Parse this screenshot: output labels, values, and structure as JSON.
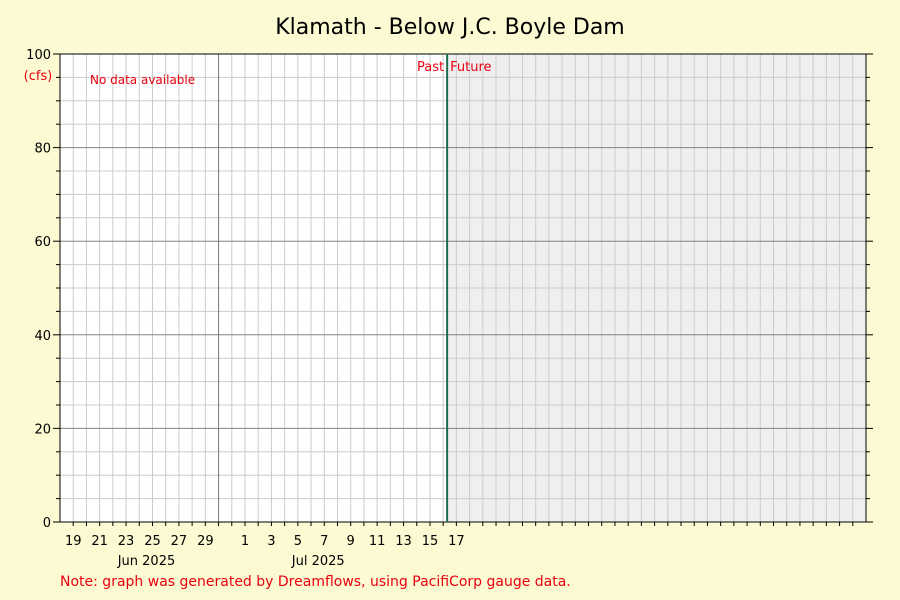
{
  "chart_data": {
    "type": "line",
    "title": "Klamath - Below J.C. Boyle Dam",
    "ylabel": "(cfs)",
    "ylim": [
      0,
      100
    ],
    "y_ticks": [
      0,
      20,
      40,
      60,
      80,
      100
    ],
    "y_minor_step": 5,
    "x_start": "2025-05-18",
    "x_end": "2025-07-18",
    "x_tick_labels": [
      {
        "date": "2025-05-19",
        "label": "19"
      },
      {
        "date": "2025-05-21",
        "label": "21"
      },
      {
        "date": "2025-05-23",
        "label": "23"
      },
      {
        "date": "2025-05-25",
        "label": "25"
      },
      {
        "date": "2025-05-27",
        "label": "27"
      },
      {
        "date": "2025-05-29",
        "label": "29"
      },
      {
        "date": "2025-06-01",
        "label": "1"
      },
      {
        "date": "2025-06-03",
        "label": "3"
      },
      {
        "date": "2025-06-05",
        "label": "5"
      },
      {
        "date": "2025-06-07",
        "label": "7"
      },
      {
        "date": "2025-06-09",
        "label": "9"
      },
      {
        "date": "2025-06-11",
        "label": "11"
      },
      {
        "date": "2025-06-13",
        "label": "13"
      },
      {
        "date": "2025-06-15",
        "label": "15"
      },
      {
        "date": "2025-06-17",
        "label": "17"
      }
    ],
    "month_labels": [
      {
        "date": "2025-05-25",
        "label": "Jun 2025"
      },
      {
        "date": "2025-06-07",
        "label": "Jul 2025"
      }
    ],
    "month_boundaries": [
      "2025-05-30"
    ],
    "now_date": "2025-06-16.3",
    "past_label": "Past",
    "future_label": "Future",
    "no_data_text": "No data available",
    "series": [],
    "grid": true,
    "colors": {
      "background": "#fcfad2",
      "plot_bg": "#ffffff",
      "future_bg": "#efefef",
      "grid_minor": "#cccccc",
      "grid_major": "#808080",
      "now_line": "#1a6b4a",
      "accent_text": "#e8000f"
    }
  },
  "footer": {
    "note": "Note: graph was generated by Dreamflows, using PacifiCorp gauge data."
  }
}
